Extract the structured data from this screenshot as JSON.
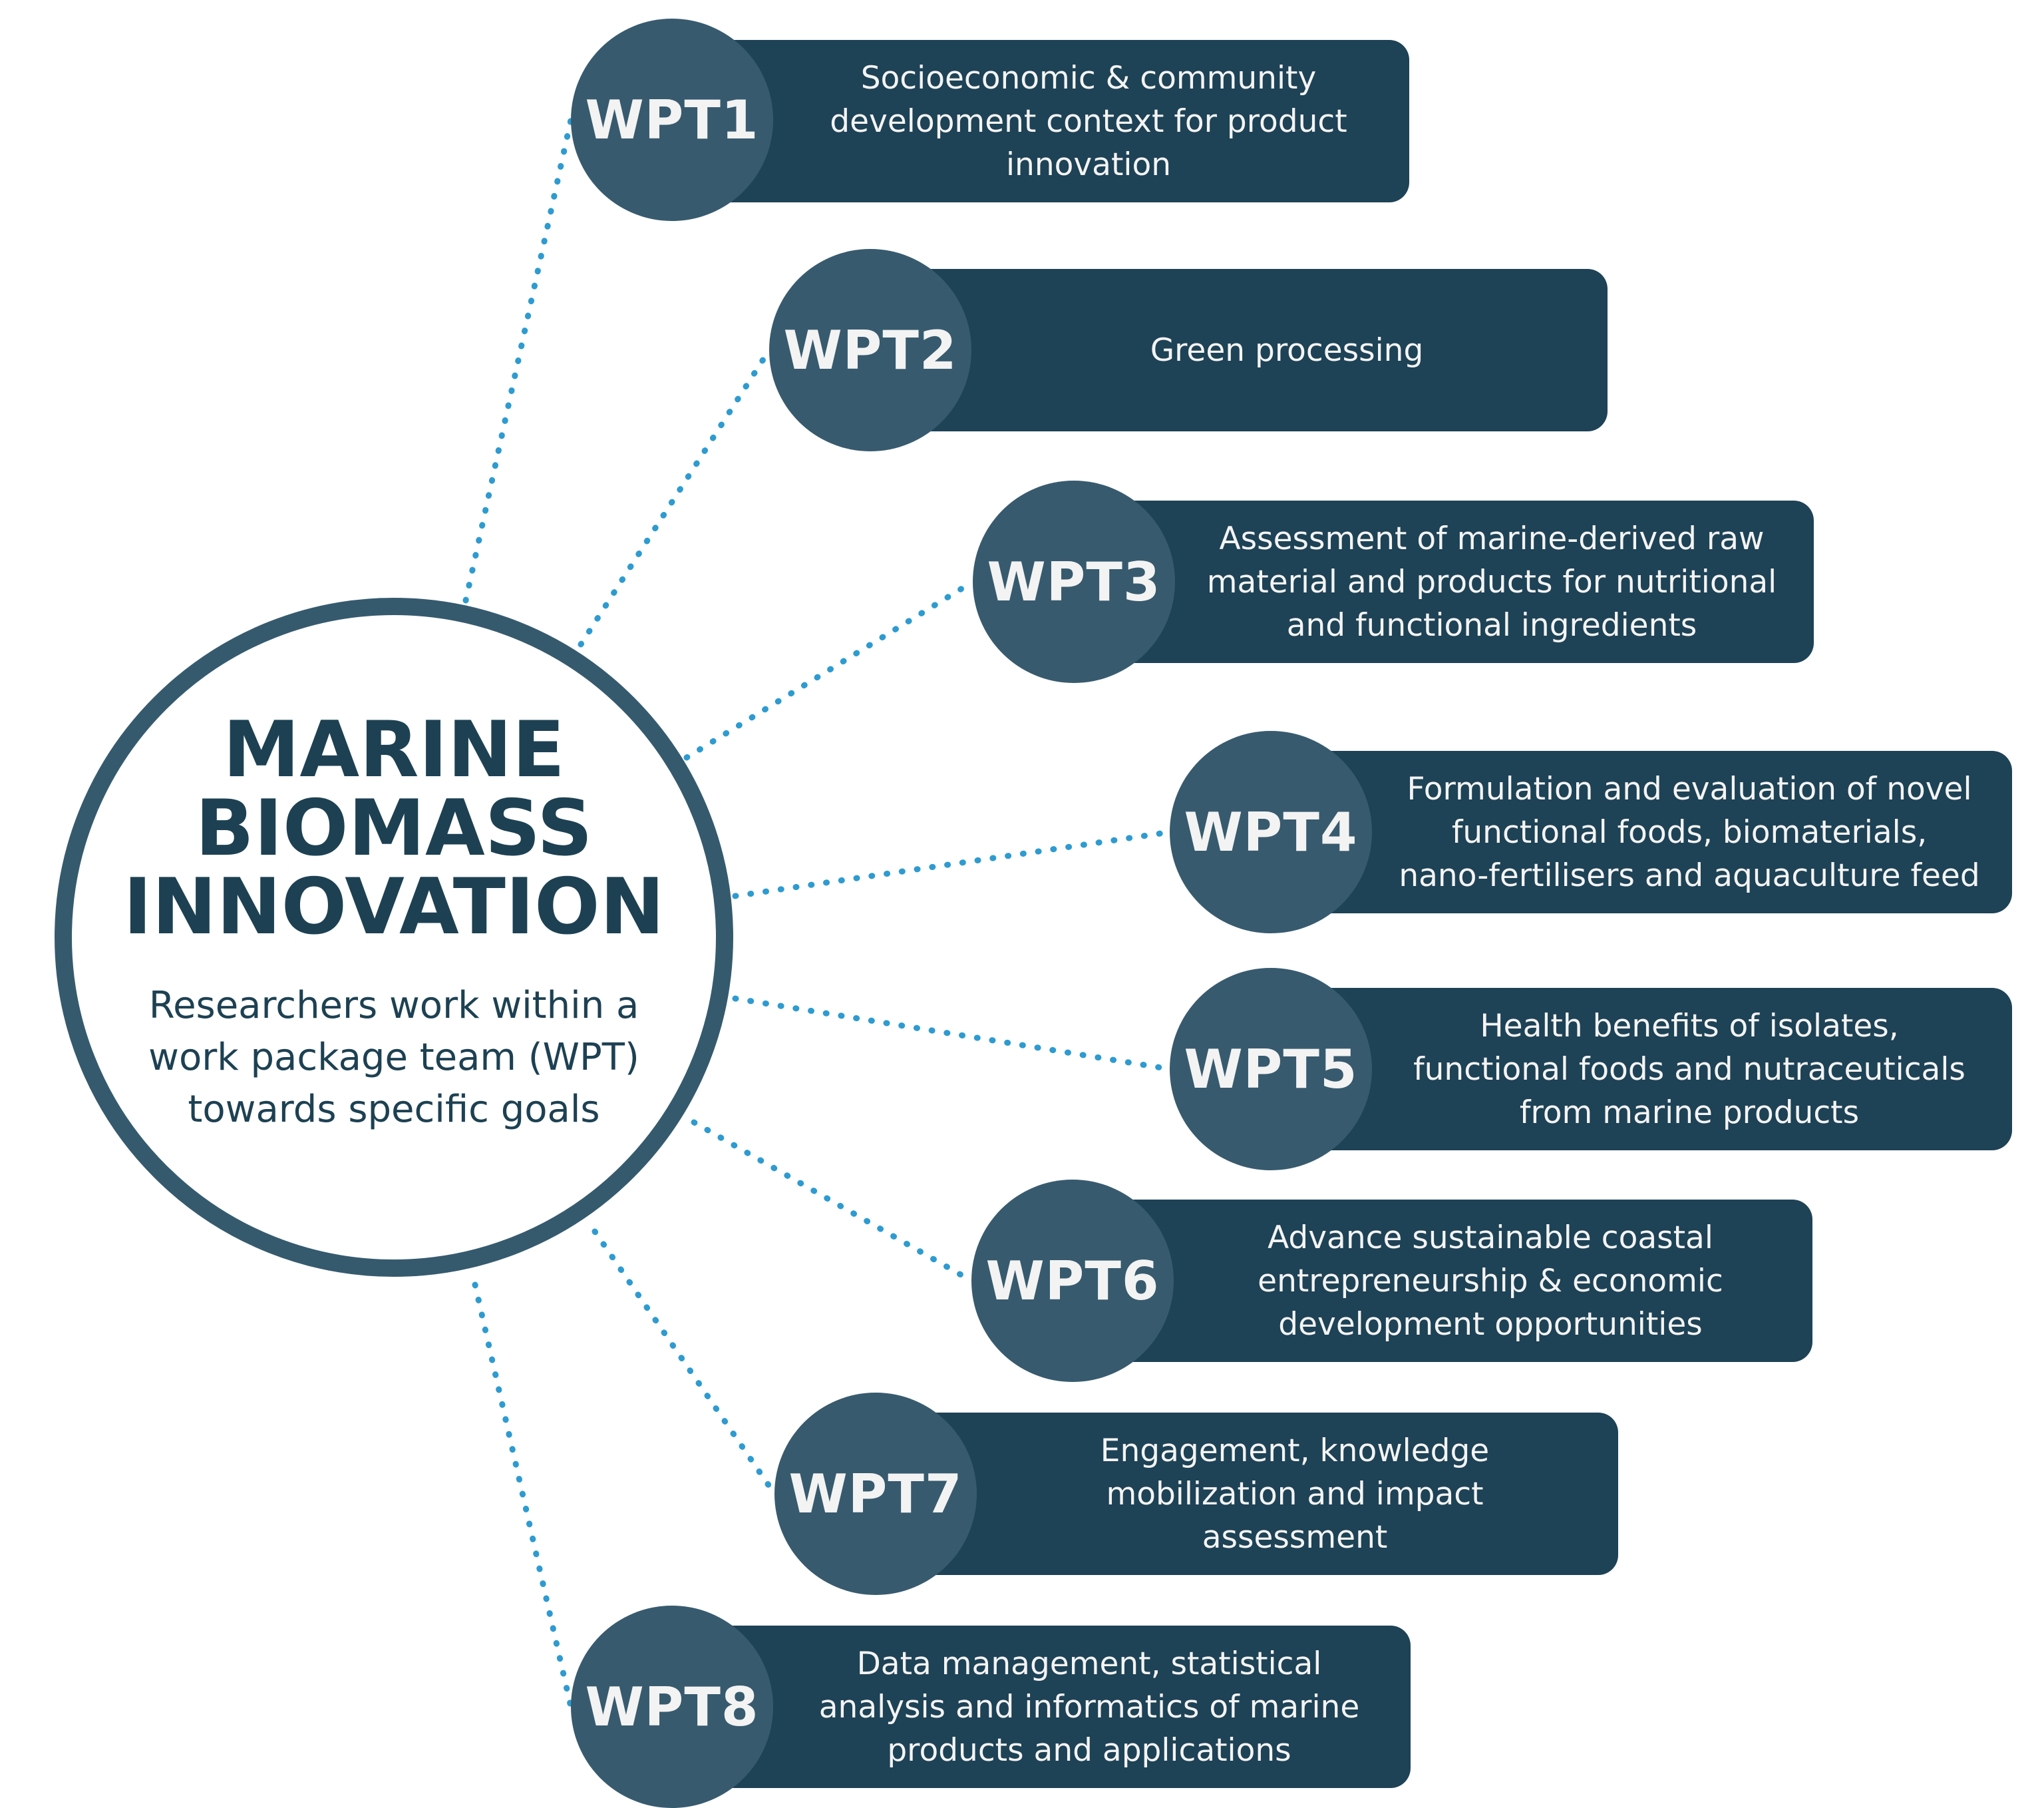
{
  "hub": {
    "title_lines": [
      "MARINE",
      "BIOMASS",
      "INNOVATION"
    ],
    "subtitle_lines": [
      "Researchers work within a",
      "work package team (WPT)",
      "towards specific goals"
    ]
  },
  "work_packages": [
    {
      "label": "WPT1",
      "description_lines": [
        "Socioeconomic & community",
        "development context for product",
        "innovation"
      ]
    },
    {
      "label": "WPT2",
      "description_lines": [
        "Green processing"
      ]
    },
    {
      "label": "WPT3",
      "description_lines": [
        "Assessment of marine-derived raw",
        "material and products for nutritional",
        "and functional ingredients"
      ]
    },
    {
      "label": "WPT4",
      "description_lines": [
        "Formulation and evaluation of novel",
        "functional foods, biomaterials,",
        "nano-fertilisers and aquaculture feed"
      ]
    },
    {
      "label": "WPT5",
      "description_lines": [
        "Health benefits of isolates,",
        "functional foods and nutraceuticals",
        "from marine products"
      ]
    },
    {
      "label": "WPT6",
      "description_lines": [
        "Advance sustainable coastal",
        "entrepreneurship & economic",
        "development opportunities"
      ]
    },
    {
      "label": "WPT7",
      "description_lines": [
        "Engagement, knowledge",
        "mobilization and impact",
        "assessment"
      ]
    },
    {
      "label": "WPT8",
      "description_lines": [
        "Data management, statistical",
        "analysis and informatics of marine",
        "products and applications"
      ]
    }
  ],
  "colors": {
    "hub_ring": "#355a6e",
    "hub_text": "#1d4153",
    "badge_fill": "#375a6e",
    "pill_fill": "#1e4256",
    "connector": "#2e9bd0",
    "light_text": "#f4f4f4"
  }
}
